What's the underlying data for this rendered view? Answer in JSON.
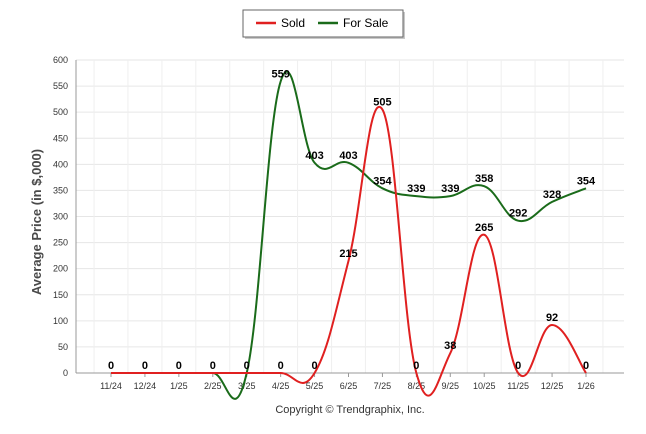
{
  "chart_data": {
    "type": "line",
    "title": "",
    "xlabel": "",
    "ylabel": "Average Price (in $,000)",
    "categories": [
      "11/24",
      "12/24",
      "1/25",
      "2/25",
      "3/25",
      "4/25",
      "5/25",
      "6/25",
      "7/25",
      "8/25",
      "9/25",
      "10/25",
      "11/25",
      "12/25",
      "1/26"
    ],
    "ylim": [
      0,
      600
    ],
    "yticks": [
      "0",
      "50",
      "100",
      "150",
      "200",
      "250",
      "300",
      "350",
      "400",
      "450",
      "500",
      "550",
      "600"
    ],
    "grid": true,
    "legend_position": "top-center",
    "series": [
      {
        "name": "Sold",
        "color": "#e02020",
        "values": [
          0,
          0,
          0,
          0,
          0,
          0,
          0,
          215,
          505,
          0,
          38,
          265,
          0,
          92,
          0
        ],
        "labels": [
          "0",
          "0",
          "0",
          "0",
          "0",
          "0",
          "0",
          "215",
          "505",
          "0",
          "38",
          "265",
          "0",
          "92",
          "0"
        ]
      },
      {
        "name": "For Sale",
        "color": "#1a6b1a",
        "values": [
          0,
          0,
          0,
          0,
          0,
          559,
          403,
          403,
          354,
          339,
          339,
          358,
          292,
          328,
          354
        ],
        "labels": [
          "",
          "",
          "",
          "",
          "",
          "559",
          "403",
          "403",
          "354",
          "339",
          "339",
          "358",
          "292",
          "328",
          "354"
        ]
      }
    ]
  },
  "footer": {
    "copyright": "Copyright © Trendgraphix, Inc."
  }
}
